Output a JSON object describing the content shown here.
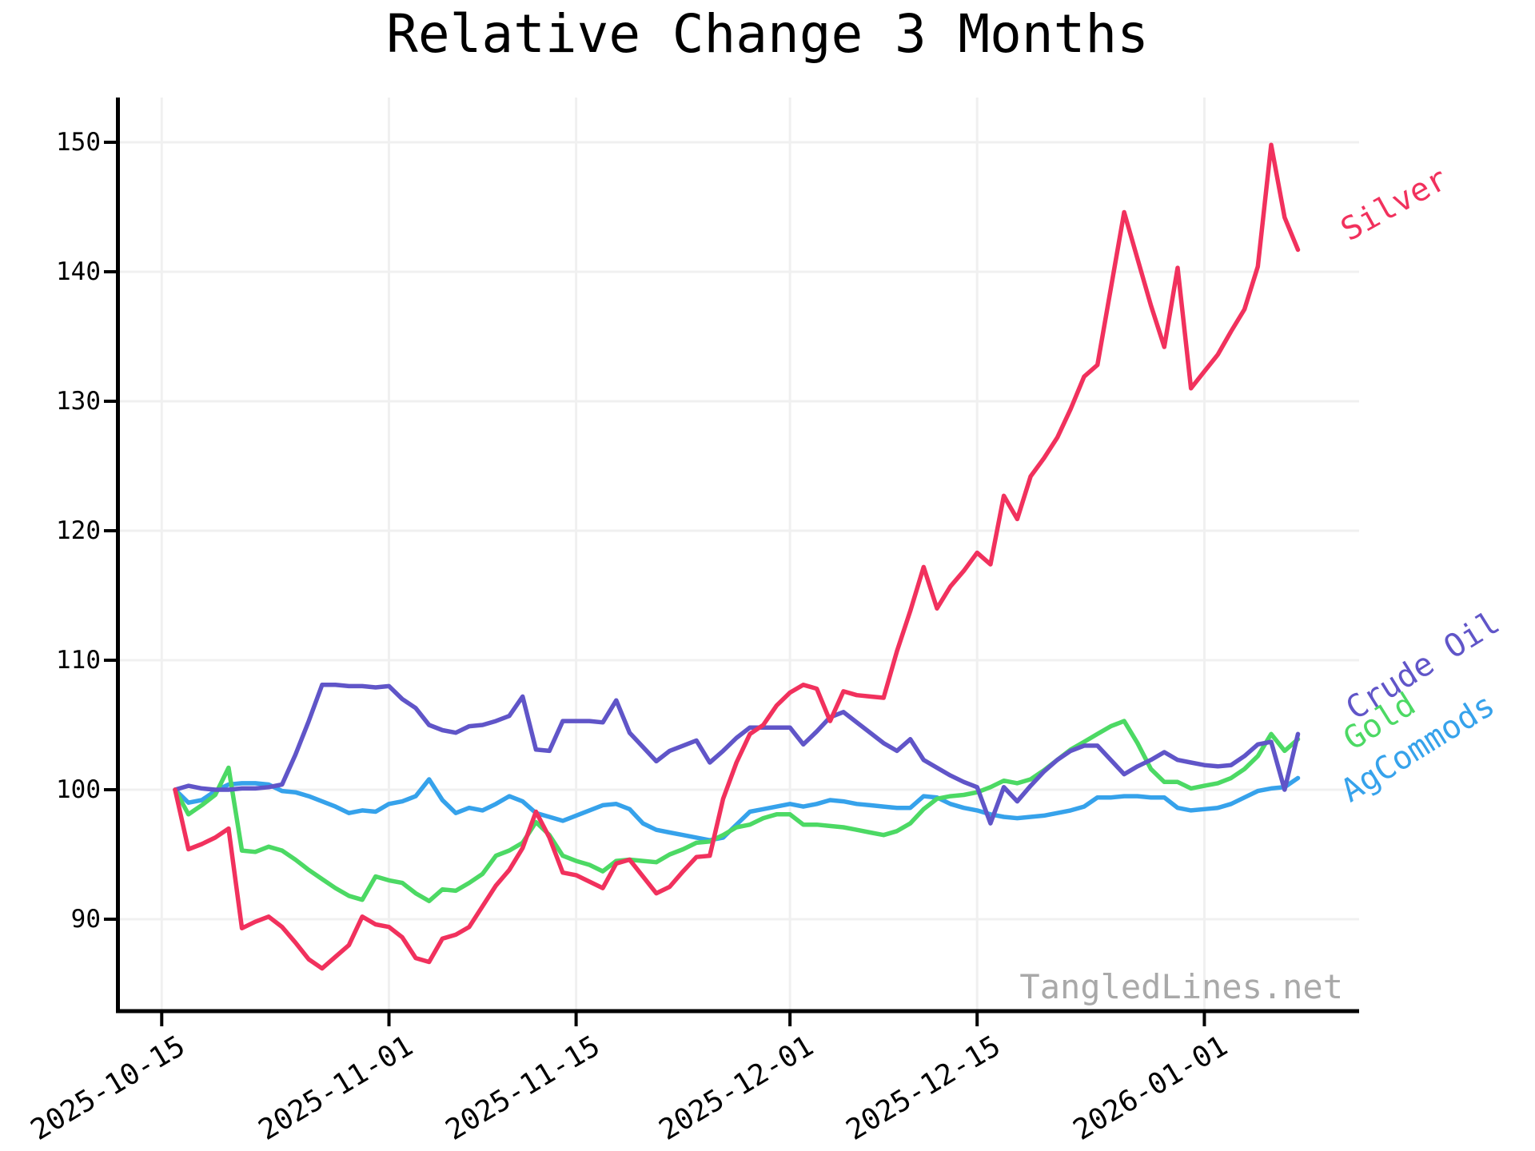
{
  "title": "Relative Change 3 Months",
  "watermark": "TangledLines.net",
  "colors": {
    "background": "#ffffff",
    "gridline": "#f0f0f0",
    "axis": "#000000",
    "tick_label": "#000000",
    "watermark": "#a9a9a9",
    "silver": "#f1315d",
    "crude_oil": "#6055c8",
    "gold": "#4cd964",
    "agcommods": "#36a2eb"
  },
  "chart_data": {
    "type": "line",
    "title": "Relative Change 3 Months",
    "xlabel": "",
    "ylabel": "",
    "grid": true,
    "legend_position": "inline-annotations-right",
    "y_axis": {
      "ticks": [
        90,
        100,
        110,
        120,
        130,
        140,
        150
      ],
      "range": [
        82.9,
        153.6
      ]
    },
    "x_ticks": [
      "2025-10-15",
      "2025-11-01",
      "2025-11-15",
      "2025-12-01",
      "2025-12-15",
      "2026-01-01"
    ],
    "dates": [
      "2025-10-16",
      "2025-10-17",
      "2025-10-18",
      "2025-10-19",
      "2025-10-20",
      "2025-10-21",
      "2025-10-22",
      "2025-10-23",
      "2025-10-24",
      "2025-10-25",
      "2025-10-26",
      "2025-10-27",
      "2025-10-28",
      "2025-10-29",
      "2025-10-30",
      "2025-10-31",
      "2025-11-01",
      "2025-11-02",
      "2025-11-03",
      "2025-11-04",
      "2025-11-05",
      "2025-11-06",
      "2025-11-07",
      "2025-11-08",
      "2025-11-09",
      "2025-11-10",
      "2025-11-11",
      "2025-11-12",
      "2025-11-13",
      "2025-11-14",
      "2025-11-15",
      "2025-11-16",
      "2025-11-17",
      "2025-11-18",
      "2025-11-19",
      "2025-11-20",
      "2025-11-21",
      "2025-11-22",
      "2025-11-23",
      "2025-11-24",
      "2025-11-25",
      "2025-11-26",
      "2025-11-27",
      "2025-11-28",
      "2025-11-29",
      "2025-11-30",
      "2025-12-01",
      "2025-12-02",
      "2025-12-03",
      "2025-12-04",
      "2025-12-05",
      "2025-12-06",
      "2025-12-07",
      "2025-12-08",
      "2025-12-09",
      "2025-12-10",
      "2025-12-11",
      "2025-12-12",
      "2025-12-13",
      "2025-12-14",
      "2025-12-15",
      "2025-12-16",
      "2025-12-17",
      "2025-12-18",
      "2025-12-19",
      "2025-12-20",
      "2025-12-21",
      "2025-12-22",
      "2025-12-23",
      "2025-12-24",
      "2025-12-25",
      "2025-12-26",
      "2025-12-27",
      "2025-12-28",
      "2025-12-29",
      "2025-12-30",
      "2025-12-31",
      "2026-01-01",
      "2026-01-02",
      "2026-01-03",
      "2026-01-04",
      "2026-01-05",
      "2026-01-06",
      "2026-01-07",
      "2026-01-08"
    ],
    "series": [
      {
        "name": "AgCommods",
        "color": "#36a2eb",
        "values": [
          100.0,
          99.0,
          99.2,
          99.9,
          100.4,
          100.5,
          100.5,
          100.4,
          99.9,
          99.8,
          99.5,
          99.1,
          98.7,
          98.2,
          98.4,
          98.3,
          98.9,
          99.1,
          99.5,
          100.8,
          99.2,
          98.2,
          98.6,
          98.4,
          98.9,
          99.5,
          99.1,
          98.2,
          97.9,
          97.6,
          98.0,
          98.4,
          98.8,
          98.9,
          98.5,
          97.4,
          96.9,
          96.7,
          96.5,
          96.3,
          96.1,
          96.3,
          97.3,
          98.3,
          98.5,
          98.7,
          98.9,
          98.7,
          98.9,
          99.2,
          99.1,
          98.9,
          98.8,
          98.7,
          98.6,
          98.6,
          99.5,
          99.4,
          98.9,
          98.6,
          98.4,
          98.1,
          97.9,
          97.8,
          97.9,
          98.0,
          98.2,
          98.4,
          98.7,
          99.4,
          99.4,
          99.5,
          99.5,
          99.4,
          99.4,
          98.6,
          98.4,
          98.5,
          98.6,
          98.9,
          99.4,
          99.9,
          100.1,
          100.2,
          100.9
        ]
      },
      {
        "name": "Gold",
        "color": "#4cd964",
        "values": [
          100.0,
          98.1,
          98.8,
          99.6,
          101.7,
          95.3,
          95.2,
          95.6,
          95.3,
          94.6,
          93.8,
          93.1,
          92.4,
          91.8,
          91.5,
          93.3,
          93.0,
          92.8,
          92.0,
          91.4,
          92.3,
          92.2,
          92.8,
          93.5,
          94.9,
          95.3,
          95.9,
          97.5,
          96.5,
          94.9,
          94.5,
          94.2,
          93.7,
          94.5,
          94.6,
          94.5,
          94.4,
          95.0,
          95.4,
          95.9,
          96.0,
          96.5,
          97.1,
          97.3,
          97.8,
          98.1,
          98.1,
          97.3,
          97.3,
          97.2,
          97.1,
          96.9,
          96.7,
          96.5,
          96.8,
          97.4,
          98.5,
          99.3,
          99.5,
          99.6,
          99.8,
          100.2,
          100.7,
          100.5,
          100.8,
          101.5,
          102.3,
          103.1,
          103.7,
          104.3,
          104.9,
          105.3,
          103.6,
          101.6,
          100.6,
          100.6,
          100.1,
          100.3,
          100.5,
          100.9,
          101.6,
          102.6,
          104.3,
          103.0,
          103.9
        ]
      },
      {
        "name": "Crude Oil",
        "color": "#6055c8",
        "values": [
          100.0,
          100.3,
          100.1,
          100.0,
          100.0,
          100.1,
          100.1,
          100.2,
          100.4,
          102.7,
          105.3,
          108.1,
          108.1,
          108.0,
          108.0,
          107.9,
          108.0,
          107.0,
          106.3,
          105.0,
          104.6,
          104.4,
          104.9,
          105.0,
          105.3,
          105.7,
          107.2,
          103.1,
          103.0,
          105.3,
          105.3,
          105.3,
          105.2,
          106.9,
          104.4,
          103.3,
          102.2,
          103.0,
          103.4,
          103.8,
          102.1,
          103.0,
          104.0,
          104.8,
          104.8,
          104.8,
          104.8,
          103.5,
          104.5,
          105.6,
          106.0,
          105.2,
          104.4,
          103.6,
          103.0,
          103.9,
          102.3,
          101.7,
          101.1,
          100.6,
          100.2,
          97.4,
          100.2,
          99.1,
          100.3,
          101.4,
          102.3,
          103.0,
          103.4,
          103.4,
          102.3,
          101.2,
          101.8,
          102.3,
          102.9,
          102.3,
          102.1,
          101.9,
          101.8,
          101.9,
          102.6,
          103.5,
          103.7,
          100.0,
          104.3
        ]
      },
      {
        "name": "Silver",
        "color": "#f1315d",
        "values": [
          100.0,
          95.4,
          95.8,
          96.3,
          97.0,
          89.3,
          89.8,
          90.2,
          89.4,
          88.2,
          86.9,
          86.2,
          87.1,
          88.0,
          90.2,
          89.6,
          89.4,
          88.6,
          87.0,
          86.7,
          88.5,
          88.8,
          89.4,
          91.0,
          92.6,
          93.8,
          95.5,
          98.3,
          96.3,
          93.6,
          93.4,
          92.9,
          92.4,
          94.3,
          94.6,
          93.3,
          92.0,
          92.5,
          93.7,
          94.8,
          94.9,
          99.3,
          102.1,
          104.3,
          105.0,
          106.5,
          107.5,
          108.1,
          107.8,
          105.3,
          107.6,
          107.3,
          107.2,
          107.1,
          110.7,
          113.8,
          117.2,
          114.0,
          115.7,
          116.9,
          118.3,
          117.4,
          122.7,
          120.9,
          124.2,
          125.6,
          127.2,
          129.4,
          131.9,
          132.8,
          138.7,
          144.6,
          141.0,
          137.4,
          134.2,
          140.3,
          131.0,
          132.3,
          133.6,
          135.4,
          137.1,
          140.4,
          149.8,
          144.2,
          141.7
        ]
      }
    ],
    "annotations": [
      {
        "text": "Silver",
        "color": "#f1315d"
      },
      {
        "text": "Crude Oil",
        "color": "#6055c8"
      },
      {
        "text": "Gold",
        "color": "#4cd964"
      },
      {
        "text": "AgCommods",
        "color": "#36a2eb"
      }
    ]
  }
}
